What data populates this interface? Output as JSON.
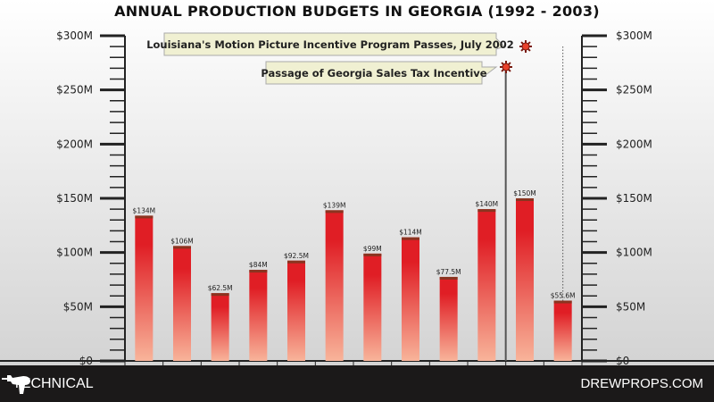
{
  "chart_data": {
    "type": "bar",
    "title": "ANNUAL PRODUCTION BUDGETS IN GEORGIA (1992 - 2003)",
    "values": [
      134,
      106,
      62.5,
      84,
      92.5,
      139,
      99,
      114,
      77.5,
      140,
      150,
      55.6
    ],
    "data_labels": [
      "$134M",
      "$106M",
      "$62.5M",
      "$84M",
      "$92.5M",
      "$139M",
      "$99M",
      "$114M",
      "$77.5M",
      "$140M",
      "$150M",
      "$55.6M"
    ],
    "ylim": [
      0,
      300
    ],
    "y_ticks": [
      0,
      50,
      100,
      150,
      200,
      250,
      300
    ],
    "y_tick_labels": [
      "$0",
      "$50M",
      "$100M",
      "$150M",
      "$200M",
      "$250M",
      "$300M"
    ],
    "axes": "left and right, mirrored",
    "grid": false,
    "annotations": [
      {
        "text": "Louisiana's Motion Picture Incentive Program Passes, July 2002",
        "line": "dotted",
        "after_bar_index": 10
      },
      {
        "text": "Passage of Georgia Sales Tax Incentive",
        "line": "solid",
        "after_bar_index": 9
      }
    ],
    "colors": {
      "bar_top": "#e01e25",
      "bar_bottom": "#f8b49a",
      "bar_cap": "#8a3420",
      "annotation_bg": "#f0f0d2",
      "marker": "#e8402a"
    }
  },
  "footer": {
    "category": "TECHNICAL",
    "brand": "DREWPROPS.COM",
    "logo_icon": "ray-gun-icon"
  }
}
